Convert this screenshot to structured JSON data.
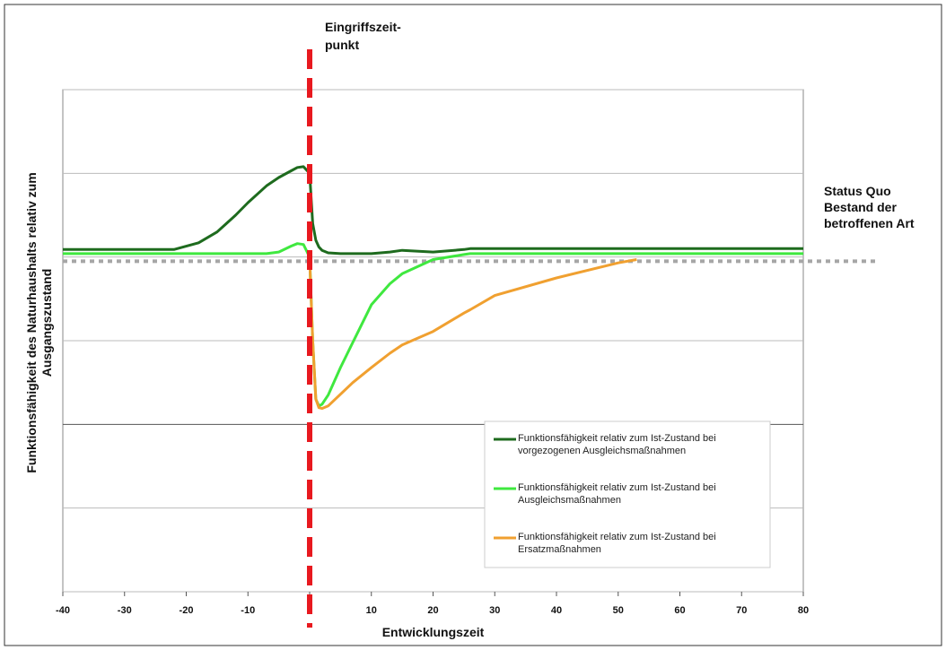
{
  "chart_data": {
    "type": "line",
    "xlabel": "Entwicklungszeit",
    "ylabel": [
      "Funktionsfähigkeit des Naturhaushalts relativ zum",
      "Ausgangszustand"
    ],
    "intervention": {
      "x": 0,
      "color": "#e8191f",
      "label": [
        "Eingriffszeit-",
        "punkt"
      ]
    },
    "status_quo": {
      "value": 3.95,
      "color": "#a6a6a6",
      "label": [
        "Status Quo",
        "Bestand der",
        "betroffenen Art"
      ]
    },
    "x": [
      -40,
      -30,
      -22,
      -18,
      -15,
      -12,
      -10,
      -7,
      -5,
      -3,
      -2,
      -1,
      0,
      0.5,
      1,
      1.5,
      2,
      3,
      5,
      7,
      10,
      13,
      15,
      20,
      25,
      26,
      30,
      40,
      50,
      53,
      60,
      70,
      80
    ],
    "series": [
      {
        "name": "Funktionsfähigkeit  relativ zum Ist-Zustand bei vorgezogenen Ausgleichsmaßnahmen",
        "color": "#1e6b1e",
        "values": [
          4.09,
          4.09,
          4.09,
          4.17,
          4.3,
          4.5,
          4.65,
          4.85,
          4.95,
          5.03,
          5.07,
          5.08,
          5.0,
          4.4,
          4.2,
          4.12,
          4.08,
          4.05,
          4.04,
          4.04,
          4.04,
          4.06,
          4.08,
          4.06,
          4.09,
          4.1,
          4.1,
          4.1,
          4.1,
          4.1,
          4.1,
          4.1,
          4.1
        ]
      },
      {
        "name": "Funktionsfähigkeit  relativ zum Ist-Zustand bei Ausgleichsmaßnahmen",
        "color": "#3fe83f",
        "values": [
          4.04,
          4.04,
          4.04,
          4.04,
          4.04,
          4.04,
          4.04,
          4.04,
          4.06,
          4.13,
          4.16,
          4.15,
          4.0,
          3.0,
          2.3,
          2.22,
          2.24,
          2.35,
          2.68,
          2.98,
          3.43,
          3.68,
          3.8,
          3.97,
          4.03,
          4.04,
          4.04,
          4.04,
          4.04,
          4.04,
          4.04,
          4.04,
          4.04
        ]
      },
      {
        "name": "Funktionsfähigkeit  relativ zum Ist-Zustand bei Ersatzmaßnahmen",
        "color": "#f0a030",
        "values": [
          null,
          null,
          null,
          null,
          null,
          null,
          null,
          null,
          null,
          null,
          null,
          null,
          3.98,
          3.0,
          2.3,
          2.2,
          2.19,
          2.22,
          2.36,
          2.5,
          2.68,
          2.85,
          2.95,
          3.11,
          3.33,
          3.37,
          3.54,
          3.75,
          3.93,
          3.97,
          null,
          null,
          null
        ]
      }
    ],
    "xlim": [
      -40,
      80
    ],
    "xticks": [
      -40,
      -30,
      -20,
      -10,
      0,
      10,
      20,
      30,
      40,
      50,
      60,
      70,
      80
    ],
    "ylim": [
      0,
      6
    ],
    "yticks": [
      0,
      1,
      2,
      3,
      4,
      5,
      6
    ],
    "axis_line_y": 2,
    "grid": true
  }
}
